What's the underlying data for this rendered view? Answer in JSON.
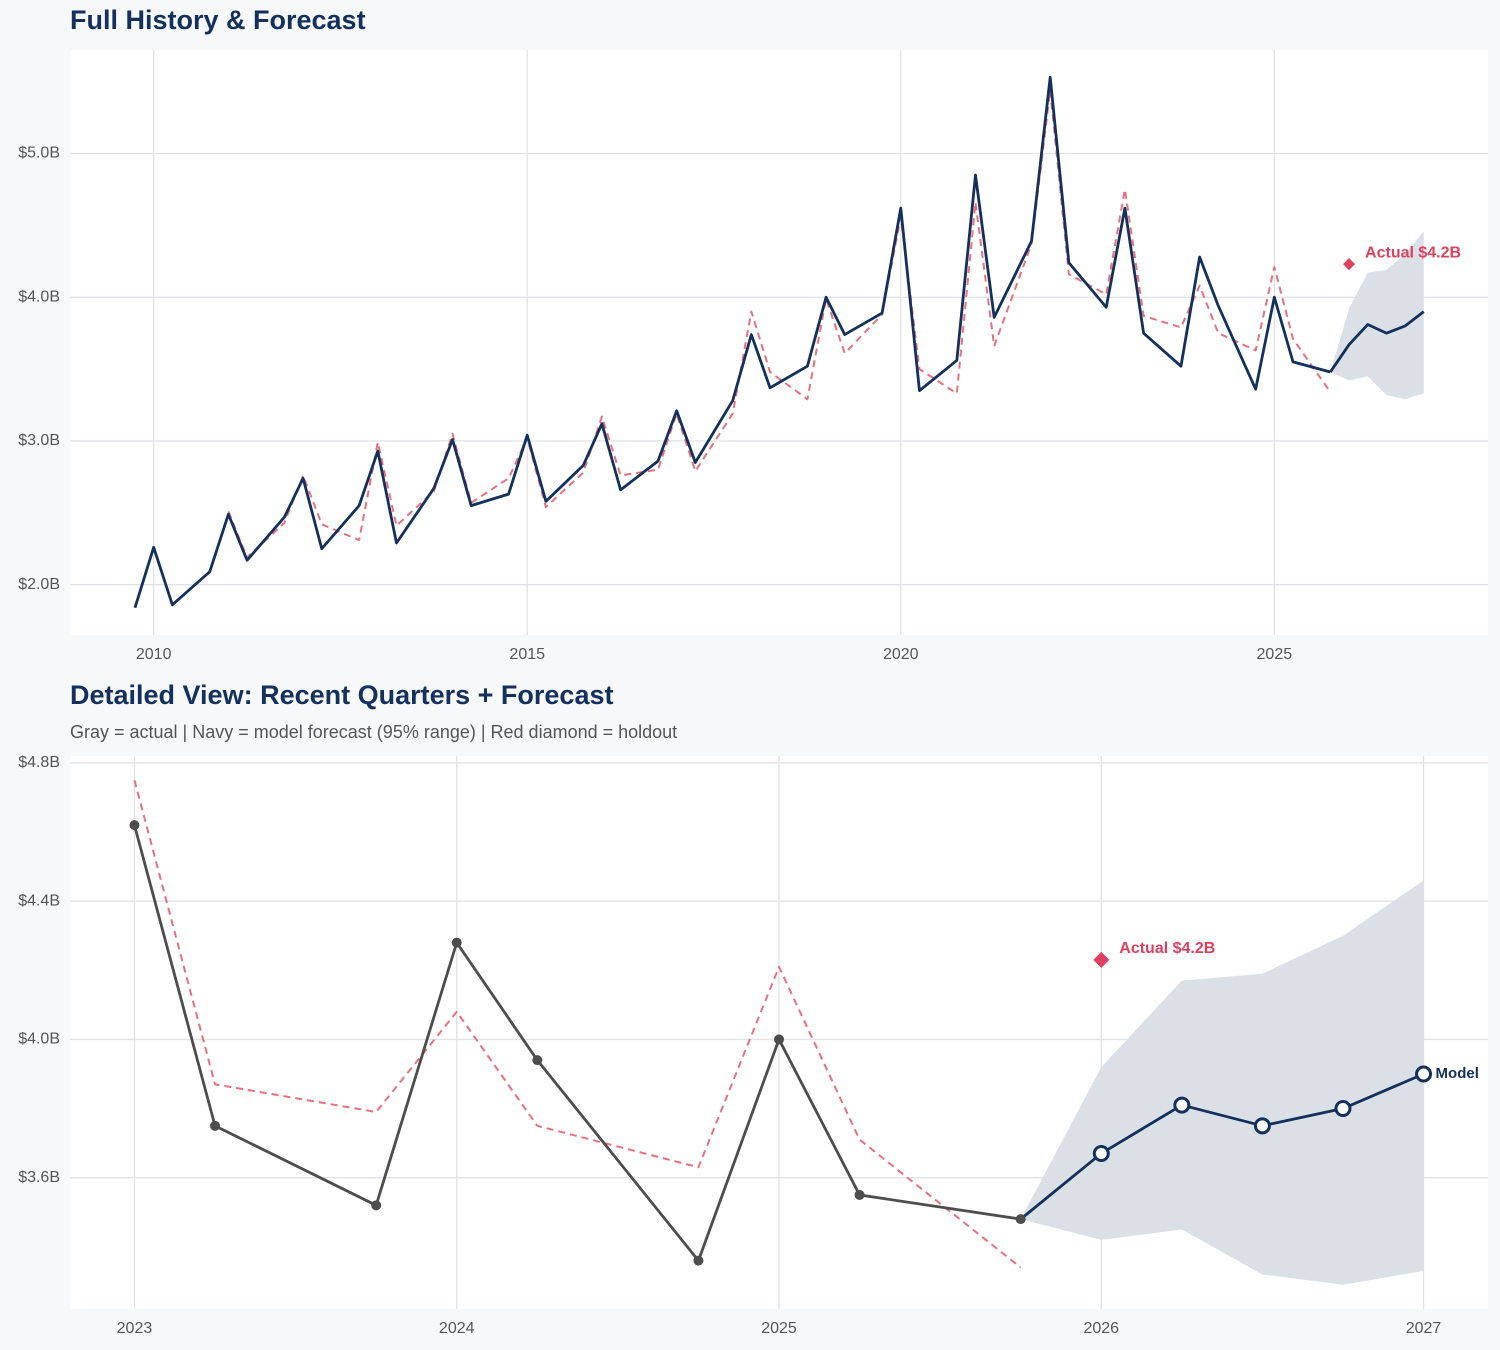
{
  "chart_data": [
    {
      "type": "line",
      "title": "Full History & Forecast",
      "xlim": [
        2008.88,
        2027.86
      ],
      "xticks": [
        2010,
        2015,
        2020,
        2025
      ],
      "ylim": [
        1.65,
        5.72
      ],
      "yticks": [
        {
          "value": 2,
          "label": "$2.0B"
        },
        {
          "value": 3,
          "label": "$3.0B"
        },
        {
          "value": 4,
          "label": "$4.0B"
        },
        {
          "value": 5,
          "label": "$5.0B"
        }
      ],
      "grid": true,
      "series": [
        {
          "color": "#e8707f",
          "style": "dashed",
          "markers": "none",
          "x": [
            2011,
            2011.25,
            2011.75,
            2012,
            2012.25,
            2012.75,
            2013,
            2013.25,
            2013.75,
            2014,
            2014.25,
            2014.75,
            2015,
            2015.25,
            2015.75,
            2016,
            2016.25,
            2016.75,
            2017,
            2017.25,
            2017.75,
            2018,
            2018.25,
            2018.75,
            2019,
            2019.25,
            2019.75,
            2020,
            2020.25,
            2020.75,
            2021,
            2021.25,
            2021.75,
            2022,
            2022.25,
            2022.75,
            2023,
            2023.25,
            2023.75,
            2024,
            2024.25,
            2024.75,
            2025,
            2025.25,
            2025.75
          ],
          "values": [
            2.51,
            2.19,
            2.43,
            2.76,
            2.42,
            2.31,
            2.99,
            2.41,
            2.65,
            3.05,
            2.57,
            2.74,
            3.02,
            2.54,
            2.78,
            3.17,
            2.76,
            2.8,
            3.19,
            2.79,
            3.19,
            3.9,
            3.48,
            3.29,
            3.99,
            3.61,
            3.88,
            4.56,
            3.5,
            3.33,
            4.66,
            3.66,
            4.37,
            5.44,
            4.16,
            4.02,
            4.75,
            3.87,
            3.79,
            4.08,
            3.75,
            3.63,
            4.21,
            3.71,
            3.34
          ]
        },
        {
          "color": "#13315c",
          "style": "solid",
          "markers": "none",
          "x": [
            2009.75,
            2010,
            2010.25,
            2010.75,
            2011,
            2011.25,
            2011.75,
            2012,
            2012.25,
            2012.75,
            2013,
            2013.25,
            2013.75,
            2014,
            2014.25,
            2014.75,
            2015,
            2015.25,
            2015.75,
            2016,
            2016.25,
            2016.75,
            2017,
            2017.25,
            2017.75,
            2018,
            2018.25,
            2018.75,
            2019,
            2019.25,
            2019.75,
            2020,
            2020.25,
            2020.75,
            2021,
            2021.25,
            2021.75,
            2022,
            2022.25,
            2022.75,
            2023,
            2023.25,
            2023.75,
            2024,
            2024.25,
            2024.75,
            2025,
            2025.25,
            2025.75
          ],
          "values": [
            1.84,
            2.26,
            1.86,
            2.09,
            2.49,
            2.17,
            2.47,
            2.74,
            2.25,
            2.55,
            2.93,
            2.29,
            2.67,
            3.01,
            2.55,
            2.63,
            3.04,
            2.58,
            2.83,
            3.12,
            2.66,
            2.86,
            3.21,
            2.85,
            3.28,
            3.74,
            3.37,
            3.52,
            4.0,
            3.74,
            3.89,
            4.62,
            3.35,
            3.56,
            4.85,
            3.86,
            4.39,
            5.53,
            4.24,
            3.93,
            4.62,
            3.75,
            3.52,
            4.28,
            3.94,
            3.36,
            4.0,
            3.55,
            3.48
          ]
        },
        {
          "color": "#13315c",
          "style": "solid",
          "markers": "none",
          "band_color": "#d9dee6",
          "x": [
            2025.75,
            2026,
            2026.25,
            2026.5,
            2026.75,
            2027
          ],
          "values": [
            3.48,
            3.67,
            3.81,
            3.75,
            3.8,
            3.9
          ],
          "lower": [
            3.48,
            3.42,
            3.45,
            3.32,
            3.29,
            3.33
          ],
          "upper": [
            3.48,
            3.92,
            4.17,
            4.19,
            4.3,
            4.46
          ]
        }
      ],
      "holdout": {
        "x": 2026,
        "value": 4.23,
        "label": "Actual $4.2B",
        "color": "#e0405e"
      }
    },
    {
      "type": "line",
      "title": "Detailed View: Recent Quarters + Forecast",
      "subtitle": "Gray = actual  |  Navy = model forecast (95% range)  |  Red diamond = holdout",
      "xlim": [
        2022.8,
        2027.2
      ],
      "xticks": [
        2023,
        2024,
        2025,
        2026,
        2027
      ],
      "ylim": [
        3.22,
        4.82
      ],
      "yticks": [
        {
          "value": 3.6,
          "label": "$3.6B"
        },
        {
          "value": 4,
          "label": "$4.0B"
        },
        {
          "value": 4.4,
          "label": "$4.4B"
        },
        {
          "value": 4.8,
          "label": "$4.8B"
        }
      ],
      "grid": true,
      "series": [
        {
          "color": "#e8707f",
          "style": "dashed",
          "markers": "none",
          "x": [
            2023,
            2023.25,
            2023.75,
            2024,
            2024.25,
            2024.75,
            2025,
            2025.25,
            2025.75
          ],
          "values": [
            4.75,
            3.87,
            3.79,
            4.08,
            3.75,
            3.63,
            4.21,
            3.71,
            3.34
          ]
        },
        {
          "color": "#4d4d4d",
          "style": "solid",
          "markers": "filled",
          "x": [
            2023,
            2023.25,
            2023.75,
            2024,
            2024.25,
            2024.75,
            2025,
            2025.25,
            2025.75
          ],
          "values": [
            4.62,
            3.75,
            3.52,
            4.28,
            3.94,
            3.36,
            4.0,
            3.55,
            3.48
          ]
        },
        {
          "name": "Model",
          "color": "#13315c",
          "style": "solid",
          "markers": "hollow",
          "band_color": "#d9dee6",
          "x": [
            2025.75,
            2026,
            2026.25,
            2026.5,
            2026.75,
            2027
          ],
          "values": [
            3.48,
            3.67,
            3.81,
            3.75,
            3.8,
            3.9
          ],
          "lower": [
            3.48,
            3.42,
            3.45,
            3.32,
            3.29,
            3.33
          ],
          "upper": [
            3.48,
            3.92,
            4.17,
            4.19,
            4.3,
            4.46
          ]
        }
      ],
      "holdout": {
        "x": 2026,
        "value": 4.23,
        "label": "Actual $4.2B",
        "color": "#e0405e"
      }
    }
  ]
}
